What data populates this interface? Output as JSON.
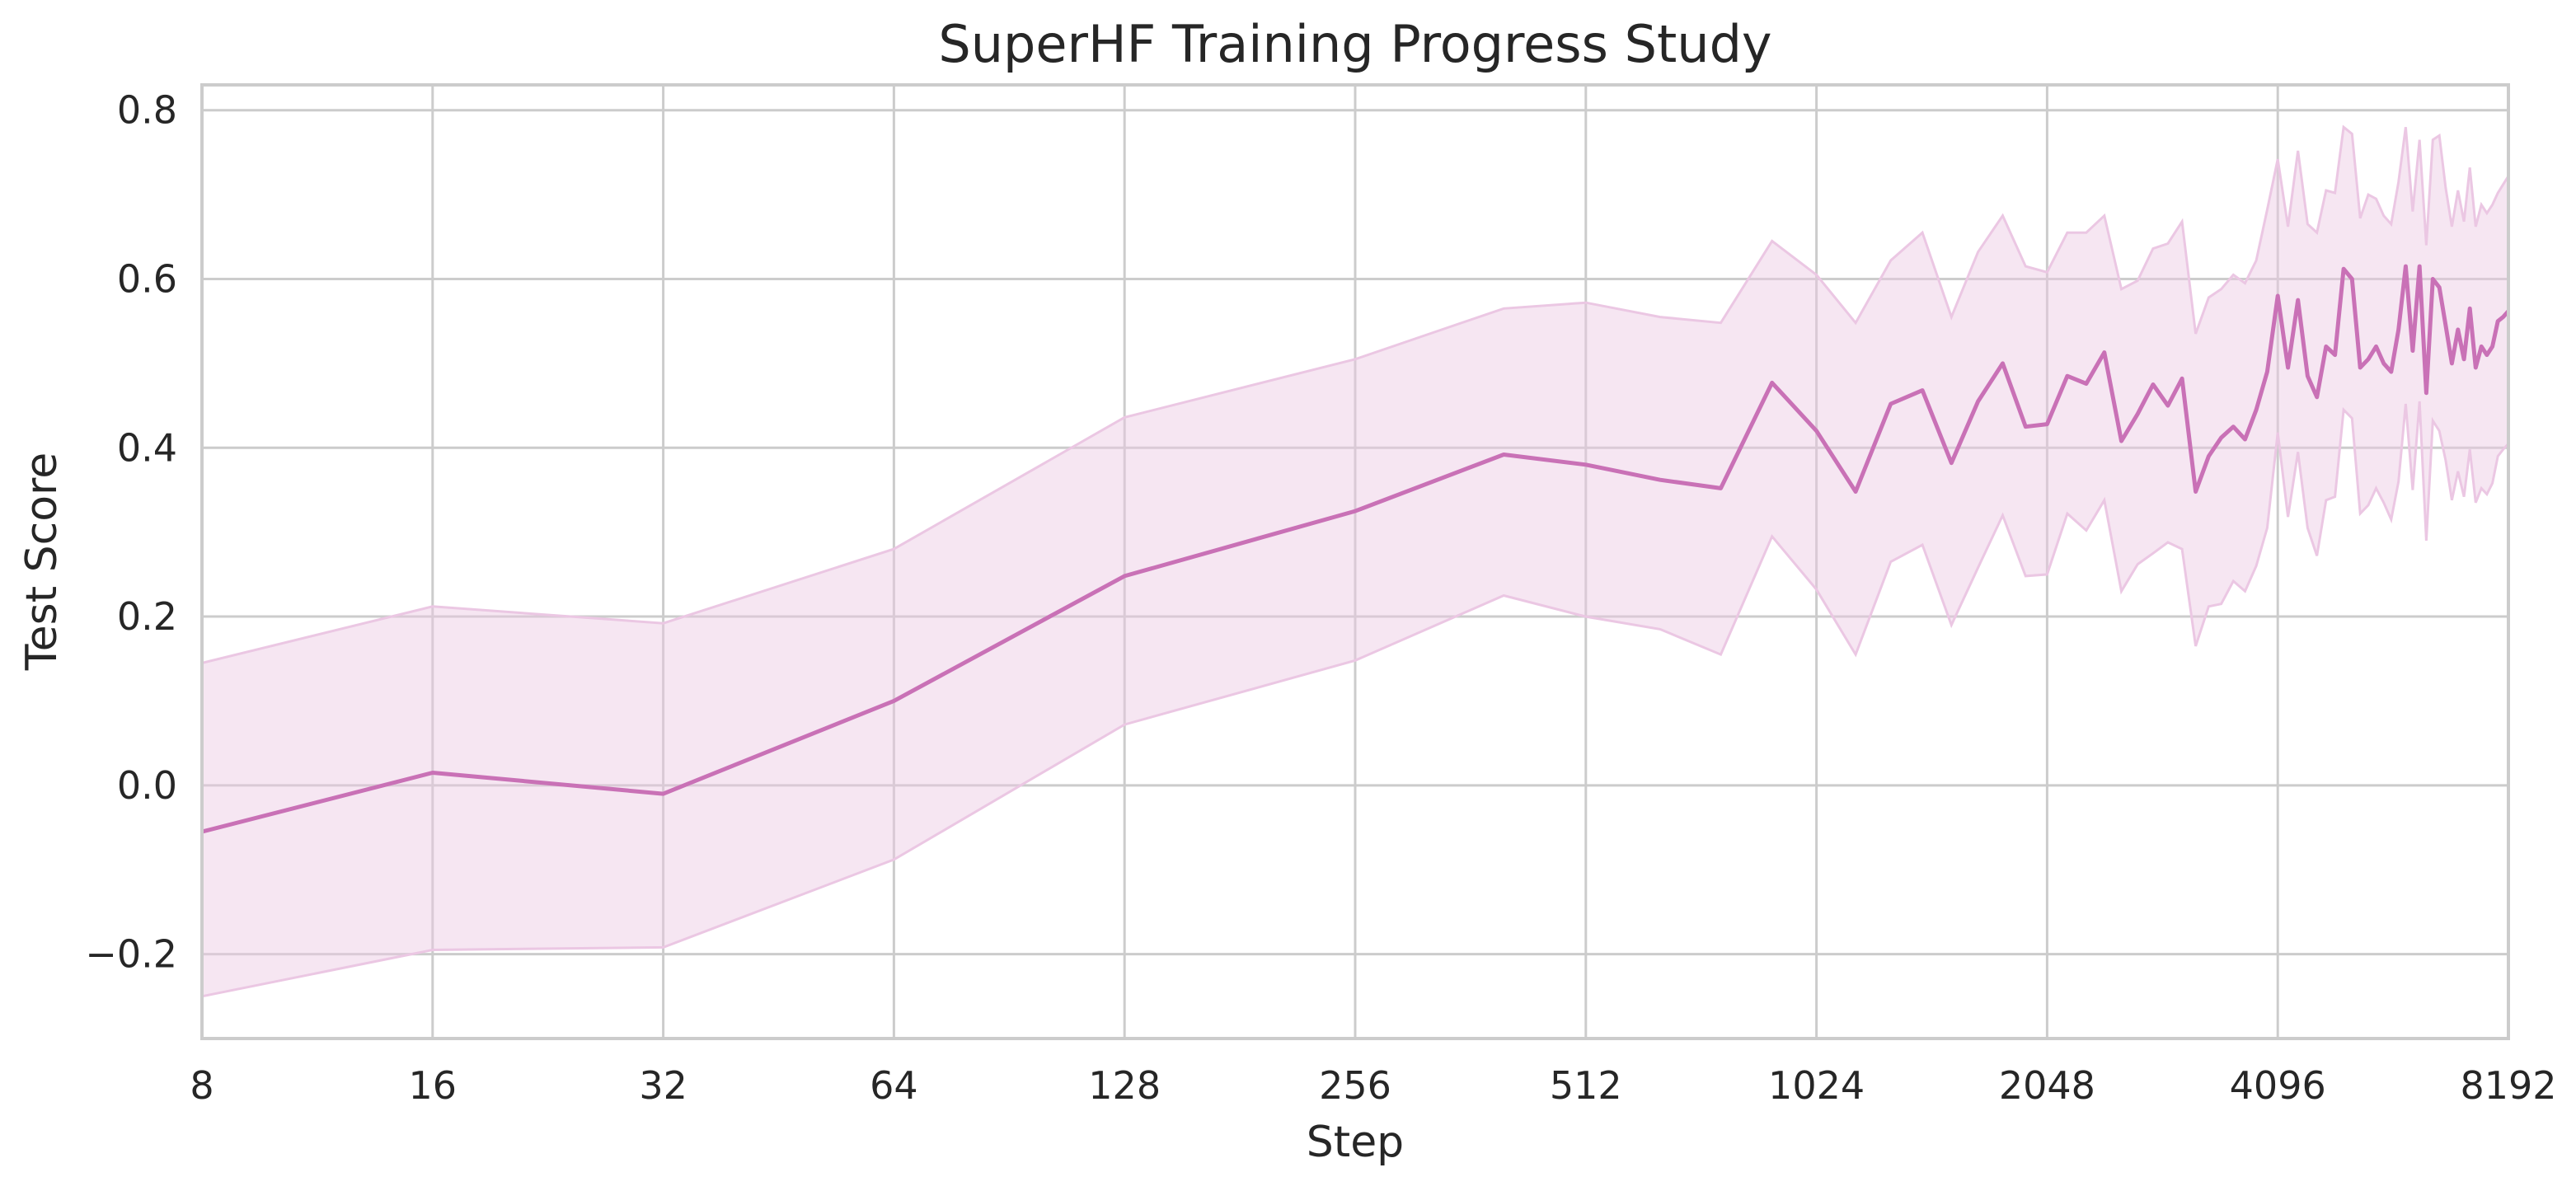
{
  "chart_data": {
    "type": "line",
    "title": "SuperHF Training Progress Study",
    "xlabel": "Step",
    "ylabel": "Test Score",
    "x_scale": "log2",
    "xlim": [
      8,
      8192
    ],
    "ylim": [
      -0.3,
      0.83
    ],
    "x_ticks": [
      8,
      16,
      32,
      64,
      128,
      256,
      512,
      1024,
      2048,
      4096,
      8192
    ],
    "x_tick_labels": [
      "8",
      "16",
      "32",
      "64",
      "128",
      "256",
      "512",
      "1024",
      "2048",
      "4096",
      "8192"
    ],
    "y_ticks": [
      -0.2,
      0.0,
      0.2,
      0.4,
      0.6,
      0.8
    ],
    "y_tick_labels": [
      "−0.2",
      "0.0",
      "0.2",
      "0.4",
      "0.6",
      "0.8"
    ],
    "grid": true,
    "line_color": "#c971b6",
    "band_color": "#ebc7e3",
    "series": [
      {
        "x": [
          8,
          16,
          32,
          64,
          128,
          256,
          400,
          512,
          640,
          768,
          896,
          1024,
          1152,
          1280,
          1408,
          1536,
          1664,
          1792,
          1920,
          2048,
          2176,
          2304,
          2432,
          2560,
          2688,
          2816,
          2944,
          3072,
          3200,
          3328,
          3456,
          3584,
          3712,
          3840,
          3968,
          4096,
          4224,
          4352,
          4480,
          4608,
          4736,
          4864,
          4992,
          5120,
          5248,
          5376,
          5504,
          5632,
          5760,
          5888,
          6016,
          6144,
          6272,
          6400,
          6528,
          6656,
          6784,
          6912,
          7040,
          7168,
          7296,
          7424,
          7552,
          7680,
          7808,
          7936,
          8064,
          8192
        ],
        "y": [
          -0.055,
          0.015,
          -0.01,
          0.1,
          0.248,
          0.325,
          0.392,
          0.38,
          0.362,
          0.352,
          0.477,
          0.42,
          0.348,
          0.452,
          0.468,
          0.382,
          0.455,
          0.5,
          0.425,
          0.428,
          0.485,
          0.476,
          0.513,
          0.408,
          0.44,
          0.475,
          0.45,
          0.482,
          0.348,
          0.39,
          0.412,
          0.425,
          0.41,
          0.445,
          0.49,
          0.58,
          0.495,
          0.575,
          0.485,
          0.46,
          0.52,
          0.51,
          0.612,
          0.6,
          0.495,
          0.505,
          0.52,
          0.5,
          0.49,
          0.54,
          0.615,
          0.515,
          0.615,
          0.465,
          0.6,
          0.59,
          0.545,
          0.5,
          0.54,
          0.505,
          0.565,
          0.495,
          0.52,
          0.51,
          0.52,
          0.55,
          0.555,
          0.562
        ],
        "ci_upper": [
          0.145,
          0.212,
          0.192,
          0.28,
          0.436,
          0.505,
          0.565,
          0.572,
          0.555,
          0.548,
          0.645,
          0.605,
          0.548,
          0.622,
          0.655,
          0.555,
          0.632,
          0.675,
          0.615,
          0.608,
          0.655,
          0.655,
          0.675,
          0.588,
          0.598,
          0.636,
          0.642,
          0.668,
          0.535,
          0.578,
          0.588,
          0.605,
          0.595,
          0.622,
          0.682,
          0.742,
          0.662,
          0.752,
          0.665,
          0.655,
          0.705,
          0.702,
          0.78,
          0.772,
          0.672,
          0.7,
          0.695,
          0.675,
          0.665,
          0.715,
          0.78,
          0.68,
          0.765,
          0.64,
          0.765,
          0.77,
          0.708,
          0.662,
          0.705,
          0.668,
          0.732,
          0.662,
          0.688,
          0.678,
          0.688,
          0.702,
          0.712,
          0.722
        ],
        "ci_lower": [
          -0.25,
          -0.195,
          -0.192,
          -0.088,
          0.072,
          0.148,
          0.225,
          0.2,
          0.185,
          0.155,
          0.295,
          0.232,
          0.155,
          0.265,
          0.285,
          0.19,
          0.258,
          0.32,
          0.248,
          0.25,
          0.322,
          0.302,
          0.338,
          0.23,
          0.262,
          0.275,
          0.288,
          0.28,
          0.165,
          0.212,
          0.215,
          0.242,
          0.23,
          0.26,
          0.305,
          0.418,
          0.318,
          0.395,
          0.305,
          0.272,
          0.338,
          0.342,
          0.445,
          0.435,
          0.322,
          0.332,
          0.352,
          0.335,
          0.315,
          0.36,
          0.452,
          0.35,
          0.455,
          0.29,
          0.432,
          0.42,
          0.385,
          0.338,
          0.372,
          0.342,
          0.398,
          0.335,
          0.352,
          0.345,
          0.358,
          0.39,
          0.398,
          0.405
        ]
      }
    ]
  }
}
